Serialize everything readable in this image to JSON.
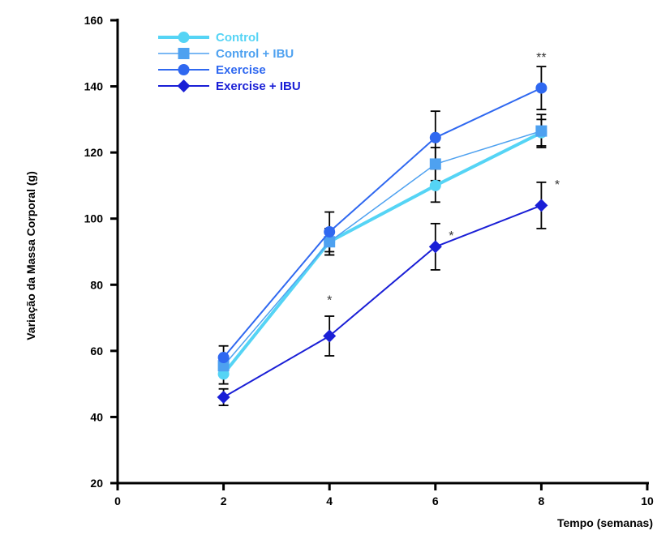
{
  "chart_data": {
    "type": "line",
    "title": "",
    "xlabel": "Tempo (semanas)",
    "ylabel": "Variação da Massa Corporal (g)",
    "xlim": [
      0,
      10
    ],
    "ylim": [
      20,
      160
    ],
    "xticks": [
      0,
      2,
      4,
      6,
      8,
      10
    ],
    "yticks": [
      20,
      40,
      60,
      80,
      100,
      120,
      140,
      160
    ],
    "x": [
      2,
      4,
      6,
      8
    ],
    "grid": false,
    "legend_position": "top-left",
    "series": [
      {
        "name": "Control",
        "color": "#55d4f5",
        "marker": "circle",
        "line_width": 4,
        "values": [
          53,
          93,
          110,
          126
        ],
        "errors": [
          3,
          4,
          5,
          4
        ]
      },
      {
        "name": "Control + IBU",
        "color": "#4ea1f0",
        "marker": "square",
        "line_width": 1.5,
        "values": [
          55.5,
          93,
          116.5,
          126.5
        ],
        "errors": [
          3,
          4,
          5,
          5
        ]
      },
      {
        "name": "Exercise",
        "color": "#2f68f0",
        "marker": "circle",
        "line_width": 2,
        "values": [
          58,
          96,
          124.5,
          139.5
        ],
        "errors": [
          3.5,
          6,
          8,
          6.5
        ]
      },
      {
        "name": "Exercise + IBU",
        "color": "#1a1fd6",
        "marker": "diamond",
        "line_width": 2,
        "values": [
          46,
          64.5,
          91.5,
          104
        ],
        "errors": [
          2.5,
          6,
          7,
          7
        ]
      }
    ],
    "annotations": [
      {
        "text": "*",
        "x": 4,
        "y": 76.5
      },
      {
        "text": "*",
        "x": 6.3,
        "y": 96
      },
      {
        "text": "*",
        "x": 8.3,
        "y": 111.5
      },
      {
        "text": "**",
        "x": 8,
        "y": 150
      }
    ]
  }
}
